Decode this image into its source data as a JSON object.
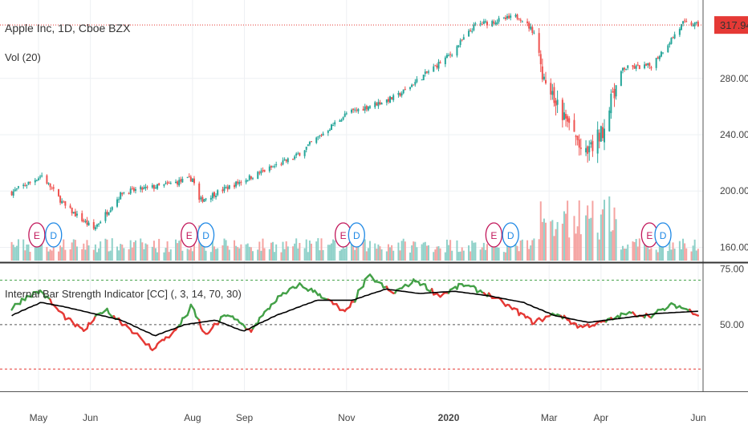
{
  "symbol_title": "Apple Inc, 1D, Cboe BZX",
  "volume_label": "Vol (20)",
  "indicator_title": "Internal Bar Strength Indicator [CC] (, 3, 14, 70, 30)",
  "last_price": "317.94",
  "earnings_letter": "E",
  "dividend_letter": "D",
  "colors": {
    "up": "#26a69a",
    "down": "#ef5350",
    "ibs_up": "#43a047",
    "ibs_down": "#e53935",
    "signal": "#000000",
    "price_line": "#e53935",
    "upper_band": "#43a047",
    "lower_band": "#e53935",
    "mid_band": "#555555",
    "earnings": "#c2185b",
    "dividend": "#1e88e5"
  },
  "chart_data": [
    {
      "type": "candlestick",
      "title": "Apple Inc, 1D, Cboe BZX",
      "ylim": [
        150,
        330
      ],
      "y_ticks": [
        "160.00",
        "200.00",
        "240.00",
        "280.00"
      ],
      "x_labels": [
        "May",
        "Jun",
        "Aug",
        "Sep",
        "Nov",
        "2020",
        "Mar",
        "Apr",
        "Jun"
      ],
      "last_value": 317.94,
      "close_series": [
        {
          "date": "2019-04-15",
          "value": 199
        },
        {
          "date": "2019-05-03",
          "value": 211
        },
        {
          "date": "2019-05-17",
          "value": 189
        },
        {
          "date": "2019-06-03",
          "value": 173
        },
        {
          "date": "2019-06-20",
          "value": 199
        },
        {
          "date": "2019-07-15",
          "value": 204
        },
        {
          "date": "2019-08-01",
          "value": 209
        },
        {
          "date": "2019-08-05",
          "value": 193
        },
        {
          "date": "2019-09-01",
          "value": 208
        },
        {
          "date": "2019-10-01",
          "value": 224
        },
        {
          "date": "2019-11-01",
          "value": 255
        },
        {
          "date": "2019-12-01",
          "value": 267
        },
        {
          "date": "2020-01-02",
          "value": 297
        },
        {
          "date": "2020-01-17",
          "value": 318
        },
        {
          "date": "2020-02-12",
          "value": 324
        },
        {
          "date": "2020-02-21",
          "value": 313
        },
        {
          "date": "2020-02-28",
          "value": 273
        },
        {
          "date": "2020-03-12",
          "value": 248
        },
        {
          "date": "2020-03-23",
          "value": 224
        },
        {
          "date": "2020-04-01",
          "value": 241
        },
        {
          "date": "2020-04-14",
          "value": 287
        },
        {
          "date": "2020-05-01",
          "value": 289
        },
        {
          "date": "2020-05-20",
          "value": 319
        },
        {
          "date": "2020-05-29",
          "value": 318
        }
      ],
      "volume": {
        "label": "Vol (20)"
      },
      "events": [
        {
          "date": "2019-04-30",
          "kind": "E"
        },
        {
          "date": "2019-05-10",
          "kind": "D"
        },
        {
          "date": "2019-07-30",
          "kind": "E"
        },
        {
          "date": "2019-08-09",
          "kind": "D"
        },
        {
          "date": "2019-10-30",
          "kind": "E"
        },
        {
          "date": "2019-11-07",
          "kind": "D"
        },
        {
          "date": "2020-01-28",
          "kind": "E"
        },
        {
          "date": "2020-02-07",
          "kind": "D"
        },
        {
          "date": "2020-04-30",
          "kind": "E"
        },
        {
          "date": "2020-05-08",
          "kind": "D"
        }
      ]
    },
    {
      "type": "line",
      "title": "Internal Bar Strength Indicator [CC] (, 3, 14, 70, 30)",
      "ylim": [
        20,
        77
      ],
      "y_ticks": [
        "50.00",
        "75.00"
      ],
      "bands": [
        70,
        50,
        30
      ],
      "series": [
        {
          "role": "ibs",
          "points": [
            {
              "date": "2019-04-15",
              "value": 57
            },
            {
              "date": "2019-04-25",
              "value": 63
            },
            {
              "date": "2019-05-03",
              "value": 65
            },
            {
              "date": "2019-05-15",
              "value": 55
            },
            {
              "date": "2019-05-28",
              "value": 47
            },
            {
              "date": "2019-06-10",
              "value": 57
            },
            {
              "date": "2019-06-24",
              "value": 49
            },
            {
              "date": "2019-07-08",
              "value": 39
            },
            {
              "date": "2019-07-22",
              "value": 47
            },
            {
              "date": "2019-08-01",
              "value": 58
            },
            {
              "date": "2019-08-09",
              "value": 45
            },
            {
              "date": "2019-08-22",
              "value": 55
            },
            {
              "date": "2019-09-05",
              "value": 47
            },
            {
              "date": "2019-09-20",
              "value": 61
            },
            {
              "date": "2019-10-04",
              "value": 68
            },
            {
              "date": "2019-10-18",
              "value": 63
            },
            {
              "date": "2019-11-01",
              "value": 55
            },
            {
              "date": "2019-11-15",
              "value": 72
            },
            {
              "date": "2019-11-29",
              "value": 64
            },
            {
              "date": "2019-12-13",
              "value": 70
            },
            {
              "date": "2019-12-27",
              "value": 63
            },
            {
              "date": "2020-01-10",
              "value": 68
            },
            {
              "date": "2020-01-24",
              "value": 64
            },
            {
              "date": "2020-02-07",
              "value": 58
            },
            {
              "date": "2020-02-21",
              "value": 51
            },
            {
              "date": "2020-03-06",
              "value": 55
            },
            {
              "date": "2020-03-20",
              "value": 49
            },
            {
              "date": "2020-04-03",
              "value": 51
            },
            {
              "date": "2020-04-17",
              "value": 55
            },
            {
              "date": "2020-05-01",
              "value": 54
            },
            {
              "date": "2020-05-15",
              "value": 59
            },
            {
              "date": "2020-05-29",
              "value": 55
            }
          ]
        },
        {
          "role": "signal",
          "points": [
            {
              "date": "2019-04-15",
              "value": 54
            },
            {
              "date": "2019-05-03",
              "value": 60
            },
            {
              "date": "2019-05-17",
              "value": 58
            },
            {
              "date": "2019-06-03",
              "value": 55
            },
            {
              "date": "2019-06-20",
              "value": 52
            },
            {
              "date": "2019-07-10",
              "value": 45
            },
            {
              "date": "2019-07-28",
              "value": 50
            },
            {
              "date": "2019-08-15",
              "value": 52
            },
            {
              "date": "2019-09-01",
              "value": 47
            },
            {
              "date": "2019-09-20",
              "value": 54
            },
            {
              "date": "2019-10-15",
              "value": 61
            },
            {
              "date": "2019-11-05",
              "value": 61
            },
            {
              "date": "2019-11-25",
              "value": 66
            },
            {
              "date": "2019-12-15",
              "value": 64
            },
            {
              "date": "2020-01-05",
              "value": 65
            },
            {
              "date": "2020-01-25",
              "value": 63
            },
            {
              "date": "2020-02-15",
              "value": 60
            },
            {
              "date": "2020-03-05",
              "value": 54
            },
            {
              "date": "2020-03-25",
              "value": 51
            },
            {
              "date": "2020-04-15",
              "value": 53
            },
            {
              "date": "2020-05-05",
              "value": 55
            },
            {
              "date": "2020-05-29",
              "value": 56
            }
          ]
        }
      ]
    }
  ]
}
